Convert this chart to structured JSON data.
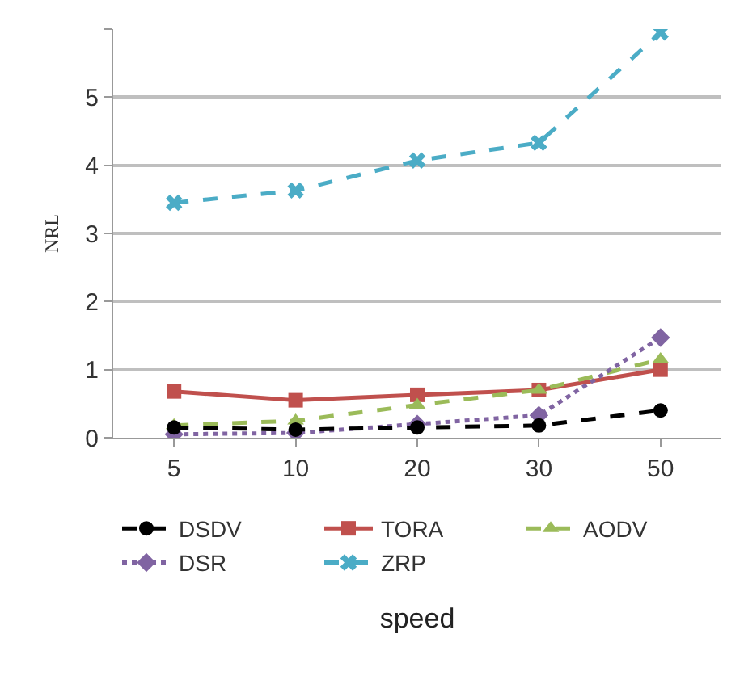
{
  "chart_data": {
    "type": "line",
    "xlabel": "speed",
    "ylabel": "NRL",
    "categories": [
      "5",
      "10",
      "20",
      "30",
      "50"
    ],
    "series": [
      {
        "name": "DSDV",
        "color": "#000000",
        "marker": "circle",
        "line_style": "dashed",
        "values": [
          0.15,
          0.12,
          0.15,
          0.18,
          0.4
        ]
      },
      {
        "name": "TORA",
        "color": "#c0504d",
        "marker": "square",
        "line_style": "solid",
        "values": [
          0.68,
          0.55,
          0.63,
          0.7,
          1.0
        ]
      },
      {
        "name": "AODV",
        "color": "#9bbb59",
        "marker": "triangle",
        "line_style": "dashed",
        "values": [
          0.18,
          0.25,
          0.48,
          0.7,
          1.15
        ]
      },
      {
        "name": "DSR",
        "color": "#8064a2",
        "marker": "diamond",
        "line_style": "dotted",
        "values": [
          0.05,
          0.07,
          0.2,
          0.33,
          1.47
        ]
      },
      {
        "name": "ZRP",
        "color": "#4bacc6",
        "marker": "cross",
        "line_style": "dashed",
        "values": [
          3.45,
          3.63,
          4.07,
          4.33,
          5.95
        ]
      }
    ],
    "ylim": [
      0,
      6
    ],
    "yticks": [
      0,
      1,
      2,
      3,
      4,
      5,
      {
        "value": 6,
        "label": null
      }
    ],
    "grid": "y",
    "legend": "bottom"
  }
}
